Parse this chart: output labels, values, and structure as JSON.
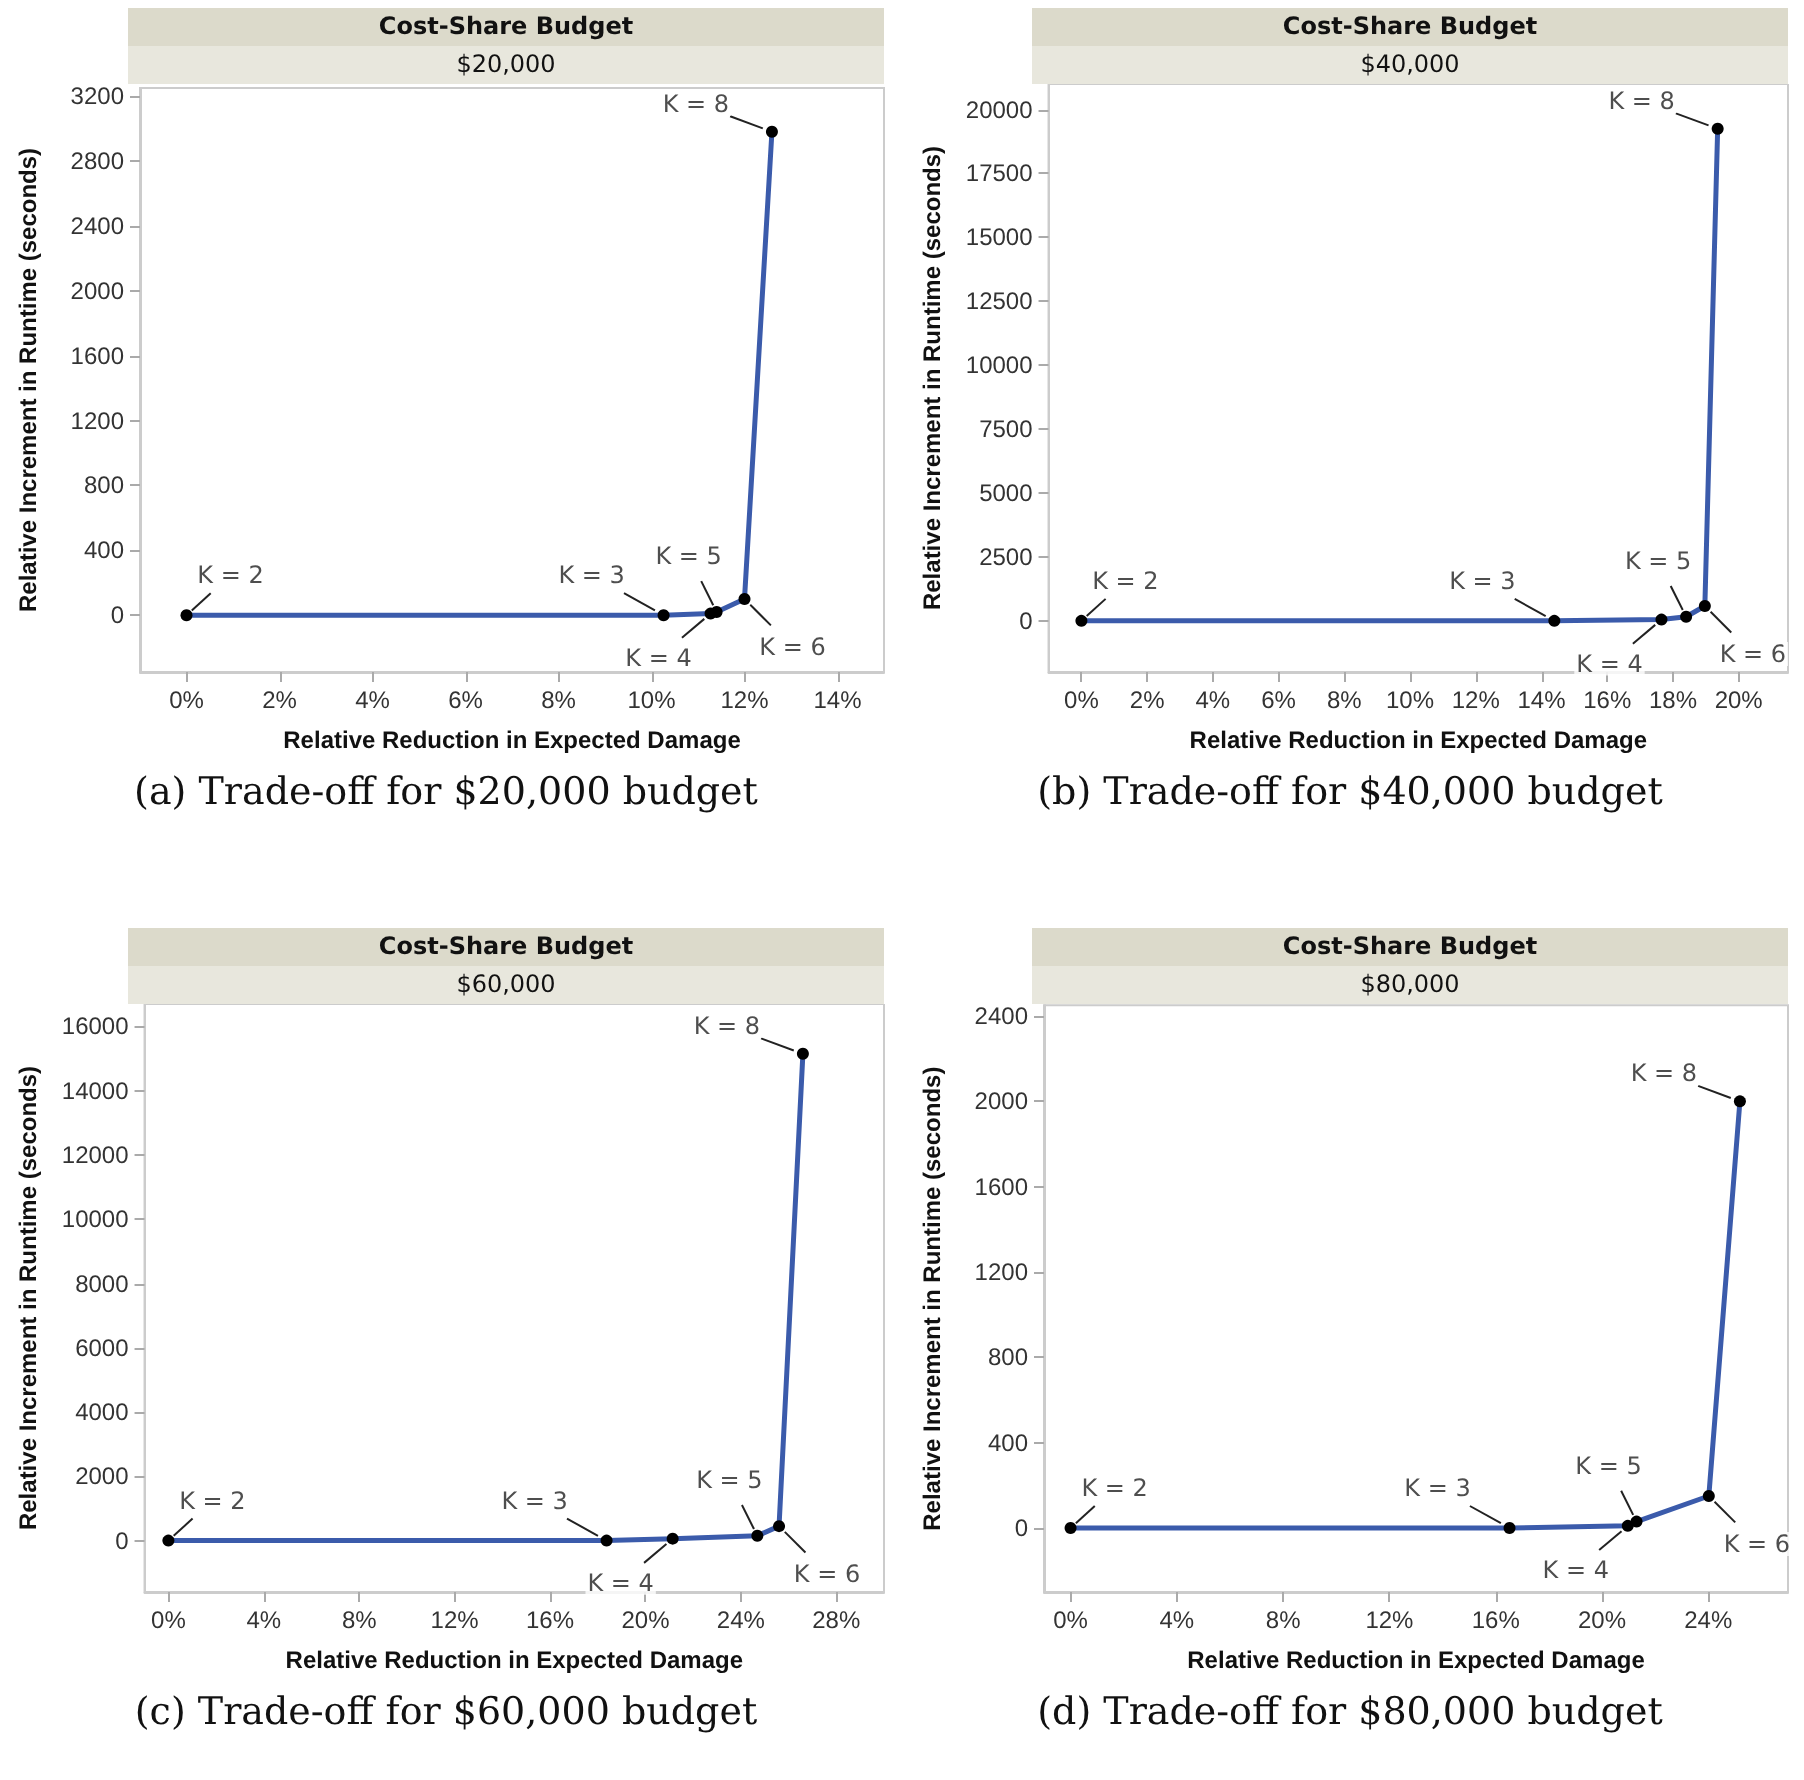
{
  "chart_data": [
    {
      "type": "line",
      "title": "Cost-Share Budget",
      "subtitle": "$20,000",
      "xlabel": "Relative Reduction in Expected Damage",
      "ylabel": "Relative Increment in Runtime (seconds)",
      "marker": "circle",
      "line_style": "solid",
      "grid": false,
      "x": [
        0,
        10.26,
        11.27,
        11.4,
        12.0,
        12.59
      ],
      "series": [
        {
          "color": "#3b5bab",
          "values": [
            0,
            0,
            10,
            20,
            100,
            2980
          ]
        }
      ],
      "xlim": [
        -1,
        15
      ],
      "xticks": [
        {
          "value": 0,
          "label": "0%"
        },
        {
          "value": 2,
          "label": "2%"
        },
        {
          "value": 4,
          "label": "4%"
        },
        {
          "value": 6,
          "label": "6%"
        },
        {
          "value": 8,
          "label": "8%"
        },
        {
          "value": 10,
          "label": "10%"
        },
        {
          "value": 12,
          "label": "12%"
        },
        {
          "value": 14,
          "label": "14%"
        }
      ],
      "ylim": [
        -350,
        3250
      ],
      "yticks": [
        0,
        400,
        800,
        1200,
        1600,
        2000,
        2400,
        2800,
        3200
      ],
      "annotations": [
        {
          "text": "K = 2",
          "x": 0,
          "y": 0
        },
        {
          "text": "K = 3",
          "x": 10.26,
          "y": 0
        },
        {
          "text": "K = 4",
          "x": 11.27,
          "y": 10
        },
        {
          "text": "K = 5",
          "x": 11.4,
          "y": 20
        },
        {
          "text": "K = 6",
          "x": 12.0,
          "y": 100
        },
        {
          "text": "K = 8",
          "x": 12.59,
          "y": 2980
        },
        "(a) Trade-off for $20,000 budget"
      ]
    },
    {
      "type": "line",
      "title": "Cost-Share Budget",
      "subtitle": "$40,000",
      "xlabel": "Relative Reduction in Expected Damage",
      "ylabel": "Relative Increment in Runtime (seconds)",
      "marker": "circle",
      "line_style": "solid",
      "grid": false,
      "x": [
        0,
        14.39,
        17.65,
        18.4,
        18.97,
        19.36
      ],
      "series": [
        {
          "color": "#3b5bab",
          "values": [
            0,
            0,
            50,
            160,
            580,
            19250
          ]
        }
      ],
      "xlim": [
        -1,
        21.5
      ],
      "xticks": [
        {
          "value": 0,
          "label": "0%"
        },
        {
          "value": 2,
          "label": "2%"
        },
        {
          "value": 4,
          "label": "4%"
        },
        {
          "value": 6,
          "label": "6%"
        },
        {
          "value": 8,
          "label": "8%"
        },
        {
          "value": 10,
          "label": "10%"
        },
        {
          "value": 12,
          "label": "12%"
        },
        {
          "value": 14,
          "label": "14%"
        },
        {
          "value": 16,
          "label": "16%"
        },
        {
          "value": 18,
          "label": "18%"
        },
        {
          "value": 20,
          "label": "20%"
        }
      ],
      "ylim": [
        -2000,
        21000
      ],
      "yticks": [
        0,
        2500,
        5000,
        7500,
        10000,
        12500,
        15000,
        17500,
        20000
      ],
      "annotations": [
        {
          "text": "K = 2",
          "x": 0,
          "y": 0
        },
        {
          "text": "K = 3",
          "x": 14.39,
          "y": 0
        },
        {
          "text": "K = 4",
          "x": 17.65,
          "y": 50
        },
        {
          "text": "K = 5",
          "x": 18.4,
          "y": 160
        },
        {
          "text": "K = 6",
          "x": 18.97,
          "y": 580
        },
        {
          "text": "K = 8",
          "x": 19.36,
          "y": 19250
        },
        "(b) Trade-off for $40,000 budget"
      ]
    },
    {
      "type": "line",
      "title": "Cost-Share Budget",
      "subtitle": "$60,000",
      "xlabel": "Relative Reduction in Expected Damage",
      "ylabel": "Relative Increment in Runtime (seconds)",
      "marker": "circle",
      "line_style": "solid",
      "grid": false,
      "x": [
        0,
        18.37,
        21.14,
        24.69,
        25.6,
        26.6
      ],
      "series": [
        {
          "color": "#3b5bab",
          "values": [
            0,
            0,
            60,
            150,
            450,
            15150
          ]
        }
      ],
      "xlim": [
        -1,
        30
      ],
      "xticks": [
        {
          "value": 0,
          "label": "0%"
        },
        {
          "value": 4,
          "label": "4%"
        },
        {
          "value": 8,
          "label": "8%"
        },
        {
          "value": 12,
          "label": "12%"
        },
        {
          "value": 16,
          "label": "16%"
        },
        {
          "value": 20,
          "label": "20%"
        },
        {
          "value": 24,
          "label": "24%"
        },
        {
          "value": 28,
          "label": "28%"
        }
      ],
      "ylim": [
        -1600,
        16700
      ],
      "yticks": [
        0,
        2000,
        4000,
        6000,
        8000,
        10000,
        12000,
        14000,
        16000
      ],
      "annotations": [
        {
          "text": "K = 2",
          "x": 0,
          "y": 0
        },
        {
          "text": "K = 3",
          "x": 18.37,
          "y": 0
        },
        {
          "text": "K = 4",
          "x": 21.14,
          "y": 60
        },
        {
          "text": "K = 5",
          "x": 24.69,
          "y": 150
        },
        {
          "text": "K = 6",
          "x": 25.6,
          "y": 450
        },
        {
          "text": "K = 8",
          "x": 26.6,
          "y": 15150
        },
        "(c) Trade-off for $60,000 budget"
      ]
    },
    {
      "type": "line",
      "title": "Cost-Share Budget",
      "subtitle": "$80,000",
      "xlabel": "Relative Reduction in Expected Damage",
      "ylabel": "Relative Increment in Runtime (seconds)",
      "marker": "circle",
      "line_style": "solid",
      "grid": false,
      "x": [
        0,
        16.52,
        20.97,
        21.3,
        24.02,
        25.19
      ],
      "series": [
        {
          "color": "#3b5bab",
          "values": [
            0,
            0,
            10,
            30,
            150,
            2000
          ]
        }
      ],
      "xlim": [
        -1,
        27
      ],
      "xticks": [
        {
          "value": 0,
          "label": "0%"
        },
        {
          "value": 4,
          "label": "4%"
        },
        {
          "value": 8,
          "label": "8%"
        },
        {
          "value": 12,
          "label": "12%"
        },
        {
          "value": 16,
          "label": "16%"
        },
        {
          "value": 20,
          "label": "20%"
        },
        {
          "value": 24,
          "label": "24%"
        }
      ],
      "ylim": [
        -300,
        2450
      ],
      "yticks": [
        0,
        400,
        800,
        1200,
        1600,
        2000,
        2400
      ],
      "annotations": [
        {
          "text": "K = 2",
          "x": 0,
          "y": 0
        },
        {
          "text": "K = 3",
          "x": 16.52,
          "y": 0
        },
        {
          "text": "K = 4",
          "x": 20.97,
          "y": 10
        },
        {
          "text": "K = 5",
          "x": 21.3,
          "y": 30
        },
        {
          "text": "K = 6",
          "x": 24.02,
          "y": 150
        },
        {
          "text": "K = 8",
          "x": 25.19,
          "y": 2000
        },
        "(d) Trade-off for $80,000 budget"
      ]
    }
  ]
}
